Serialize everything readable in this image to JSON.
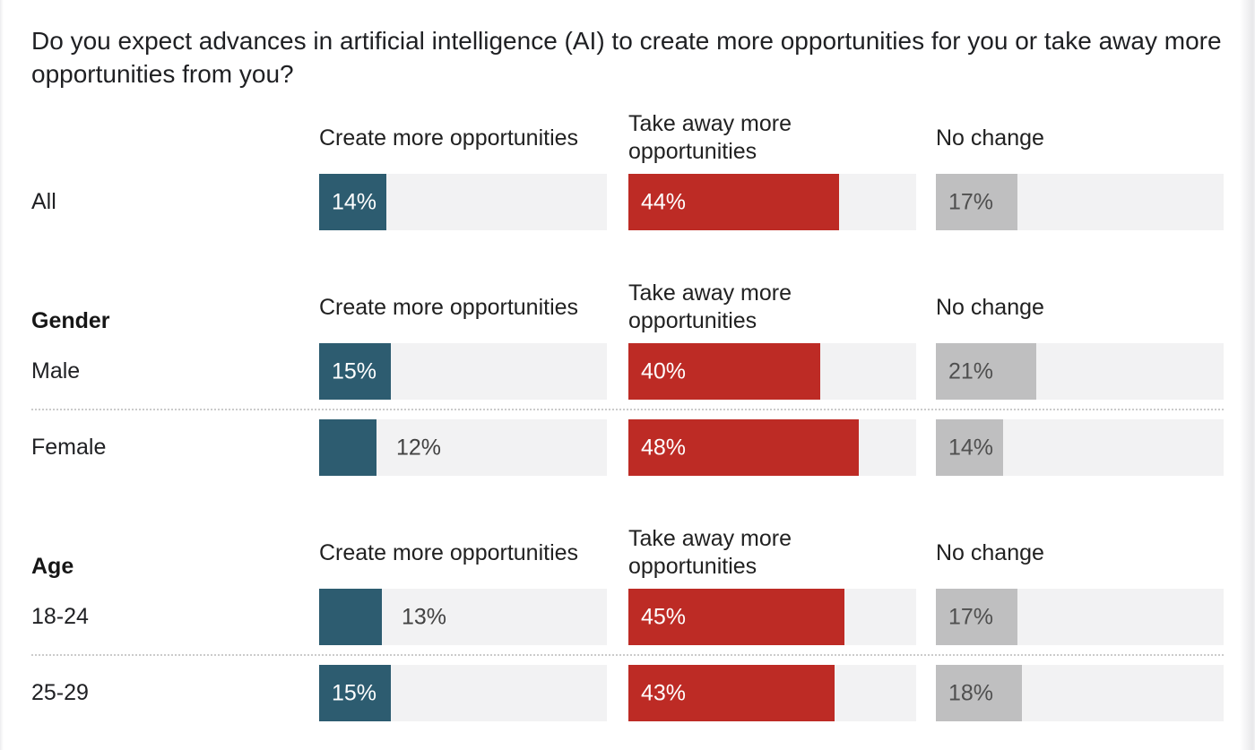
{
  "title": "Do you expect advances in artificial intelligence (AI) to create more opportunities for you or take away more opportunities from you?",
  "chart_data": {
    "type": "bar",
    "orientation": "horizontal",
    "title": "Do you expect advances in artificial intelligence (AI) to create more opportunities for you or take away more opportunities from you?",
    "value_suffix": "%",
    "xlim": [
      0,
      60
    ],
    "grid": false,
    "legend_position": "column headers repeated above each group",
    "categories": [
      "All",
      "Male",
      "Female",
      "18-24",
      "25-29"
    ],
    "groups": [
      {
        "label": "",
        "rows": [
          "All"
        ]
      },
      {
        "label": "Gender",
        "rows": [
          "Male",
          "Female"
        ]
      },
      {
        "label": "Age",
        "rows": [
          "18-24",
          "25-29"
        ]
      }
    ],
    "series": [
      {
        "name": "Create more opportunities",
        "color": "#2d5c70",
        "label_color_inside": "#ffffff",
        "values": [
          14,
          15,
          12,
          13,
          15
        ]
      },
      {
        "name": "Take away more opportunities",
        "color": "#bd2b25",
        "label_color_inside": "#ffffff",
        "values": [
          44,
          40,
          48,
          45,
          43
        ]
      },
      {
        "name": "No change",
        "color": "#bfbfc0",
        "label_color_inside": "#4f4f4f",
        "values": [
          17,
          21,
          14,
          17,
          18
        ]
      }
    ],
    "track_color": "#f2f2f3",
    "outside_label_color": "#424242",
    "divider_style": "dotted"
  }
}
